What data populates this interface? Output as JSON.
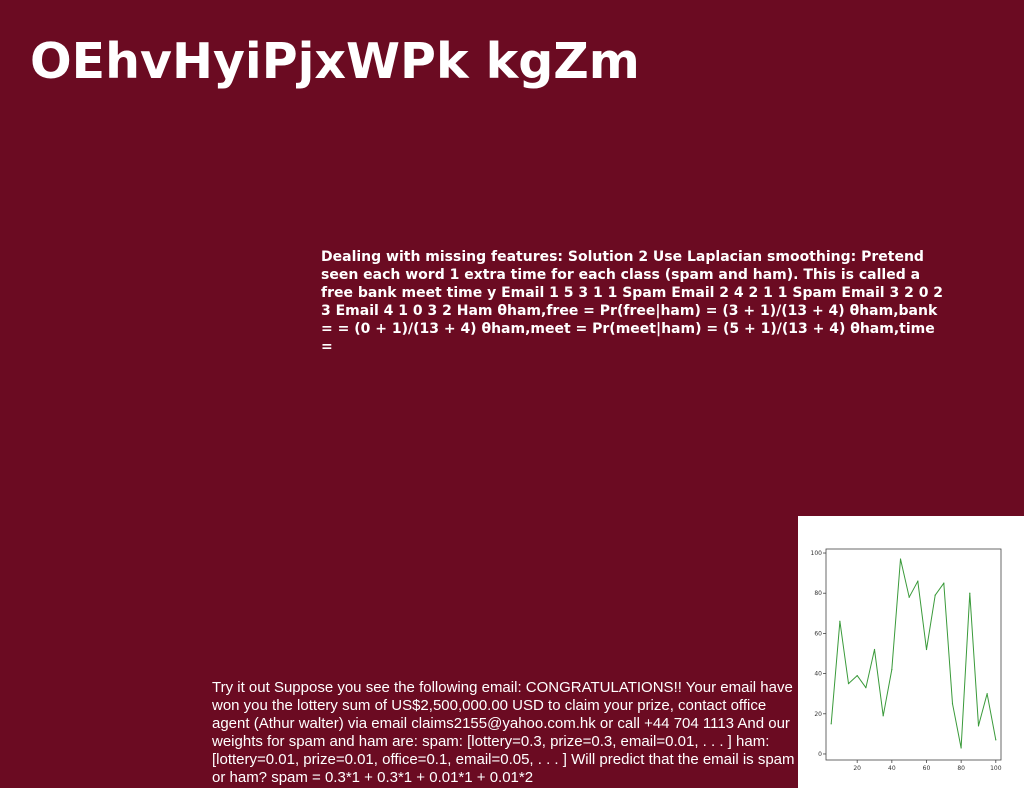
{
  "slide": {
    "title": "OEhvHyiPjxWPk kgZm",
    "upper_text": "Dealing with missing features: Solution 2 Use Laplacian smoothing: Pretend seen each word 1 extra time for each class (spam and ham). This is called a free bank meet time y Email 1 5 3 1 1 Spam Email 2 4 2 1 1 Spam Email 3 2 0 2 3 Email 4 1 0 3 2 Ham θham,free = Pr(free|ham) = (3 + 1)/(13 + 4) θham,bank = = (0 + 1)/(13 + 4) θham,meet = Pr(meet|ham) = (5 + 1)/(13 + 4) θham,time =",
    "lower_text": "Try it out Suppose you see the following email: CONGRATULATIONS!! Your email have won you the lottery sum of US$2,500,000.00 USD to claim your prize, contact office agent (Athur walter) via email claims2155@yahoo.com.hk or call +44 704 1113 And our weights for spam and ham are: spam: [lottery=0.3, prize=0.3, email=0.01, . . . ] ham: [lottery=0.01, prize=0.01, office=0.1, email=0.05, . . . ] Will predict that the email is spam or ham? spam = 0.3*1 + 0.3*1 + 0.01*1 + 0.01*2"
  },
  "colors": {
    "background": "#6b0b22",
    "text": "#ffffff",
    "line": "#3a9a3a"
  },
  "chart_data": {
    "type": "line",
    "title": "",
    "xlabel": "",
    "ylabel": "",
    "xlim": [
      2,
      103
    ],
    "ylim": [
      -3,
      102
    ],
    "xticks": [
      20,
      40,
      60,
      80,
      100
    ],
    "yticks": [
      0,
      20,
      40,
      60,
      80,
      100
    ],
    "x": [
      5,
      10,
      15,
      20,
      25,
      30,
      35,
      40,
      45,
      50,
      55,
      60,
      65,
      70,
      75,
      80,
      85,
      90,
      95,
      100
    ],
    "y": [
      15,
      66,
      35,
      39,
      33,
      52,
      19,
      42,
      97,
      78,
      86,
      52,
      79,
      85,
      25,
      3,
      80,
      14,
      30,
      7
    ]
  }
}
